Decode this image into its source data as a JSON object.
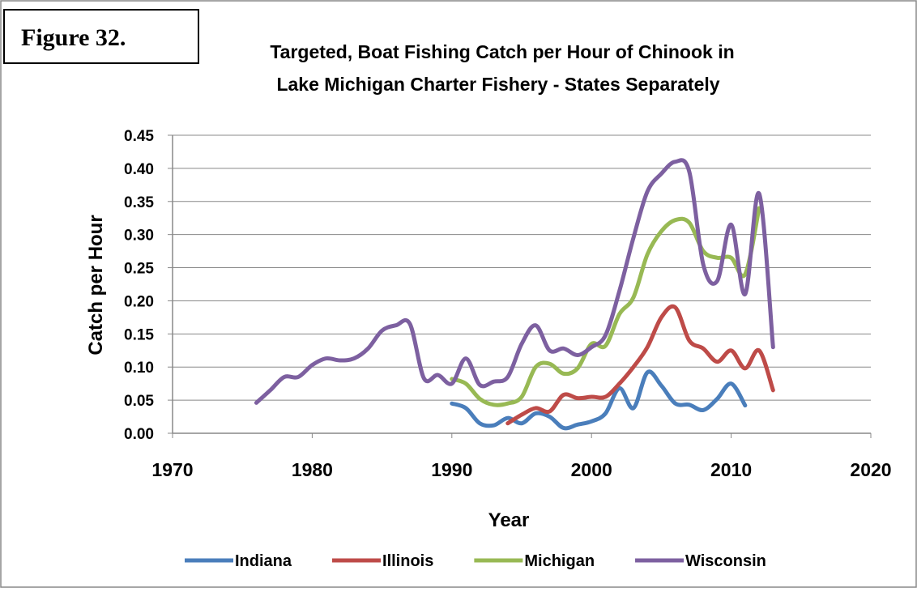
{
  "figure_label": "Figure 32.",
  "chart_data": {
    "type": "line",
    "title": [
      "Targeted, Boat Fishing Catch per Hour of Chinook in",
      "Lake Michigan Charter Fishery - States Separately"
    ],
    "x_label": "Year",
    "y_label": "Catch per Hour",
    "xlim": [
      1970,
      2020
    ],
    "xticks": [
      1970,
      1980,
      1990,
      2000,
      2010,
      2020
    ],
    "ylim": [
      0,
      0.45
    ],
    "yticks": [
      {
        "value": 0,
        "label": "0.00"
      },
      {
        "value": 0.05,
        "label": "0.05"
      },
      {
        "value": 0.1,
        "label": "0.10"
      },
      {
        "value": 0.15,
        "label": "0.15"
      },
      {
        "value": 0.2,
        "label": "0.20"
      },
      {
        "value": 0.25,
        "label": "0.25"
      },
      {
        "value": 0.3,
        "label": "0.30"
      },
      {
        "value": 0.35,
        "label": "0.35"
      },
      {
        "value": 0.4,
        "label": "0.40"
      },
      {
        "value": 0.45,
        "label": "0.45"
      }
    ],
    "grid": true,
    "smooth": true,
    "legend": "bottom",
    "series": [
      {
        "name": "Indiana",
        "color": "#4a7ebb",
        "x": [
          1990,
          1991,
          1992,
          1993,
          1994,
          1995,
          1996,
          1997,
          1998,
          1999,
          2000,
          2001,
          2002,
          2003,
          2004,
          2005,
          2006,
          2007,
          2008,
          2009,
          2010,
          2011
        ],
        "values": [
          0.045,
          0.038,
          0.015,
          0.012,
          0.023,
          0.015,
          0.03,
          0.025,
          0.008,
          0.013,
          0.018,
          0.03,
          0.068,
          0.038,
          0.092,
          0.072,
          0.045,
          0.043,
          0.035,
          0.052,
          0.075,
          0.042
        ]
      },
      {
        "name": "Illinois",
        "color": "#be4b48",
        "x": [
          1994,
          1995,
          1996,
          1997,
          1998,
          1999,
          2000,
          2001,
          2002,
          2003,
          2004,
          2005,
          2006,
          2007,
          2008,
          2009,
          2010,
          2011,
          2012,
          2013
        ],
        "values": [
          0.015,
          0.028,
          0.038,
          0.033,
          0.058,
          0.053,
          0.055,
          0.055,
          0.075,
          0.1,
          0.13,
          0.175,
          0.19,
          0.14,
          0.128,
          0.108,
          0.125,
          0.098,
          0.125,
          0.065
        ]
      },
      {
        "name": "Michigan",
        "color": "#98b954",
        "x": [
          1990,
          1991,
          1992,
          1993,
          1994,
          1995,
          1996,
          1997,
          1998,
          1999,
          2000,
          2001,
          2002,
          2003,
          2004,
          2005,
          2006,
          2007,
          2008,
          2009,
          2010,
          2011,
          2012
        ],
        "values": [
          0.082,
          0.075,
          0.052,
          0.043,
          0.045,
          0.055,
          0.1,
          0.105,
          0.09,
          0.098,
          0.135,
          0.132,
          0.18,
          0.205,
          0.27,
          0.305,
          0.322,
          0.318,
          0.275,
          0.265,
          0.265,
          0.24,
          0.34
        ]
      },
      {
        "name": "Wisconsin",
        "color": "#7d60a0",
        "x": [
          1976,
          1977,
          1978,
          1979,
          1980,
          1981,
          1982,
          1983,
          1984,
          1985,
          1986,
          1987,
          1988,
          1989,
          1990,
          1991,
          1992,
          1993,
          1994,
          1995,
          1996,
          1997,
          1998,
          1999,
          2000,
          2001,
          2002,
          2003,
          2004,
          2005,
          2006,
          2007,
          2008,
          2009,
          2010,
          2011,
          2012,
          2013
        ],
        "values": [
          0.046,
          0.065,
          0.085,
          0.085,
          0.103,
          0.113,
          0.11,
          0.113,
          0.128,
          0.155,
          0.163,
          0.165,
          0.083,
          0.088,
          0.075,
          0.113,
          0.073,
          0.078,
          0.085,
          0.135,
          0.163,
          0.125,
          0.128,
          0.118,
          0.13,
          0.148,
          0.215,
          0.295,
          0.365,
          0.392,
          0.41,
          0.395,
          0.255,
          0.23,
          0.315,
          0.21,
          0.362,
          0.13
        ]
      }
    ]
  }
}
